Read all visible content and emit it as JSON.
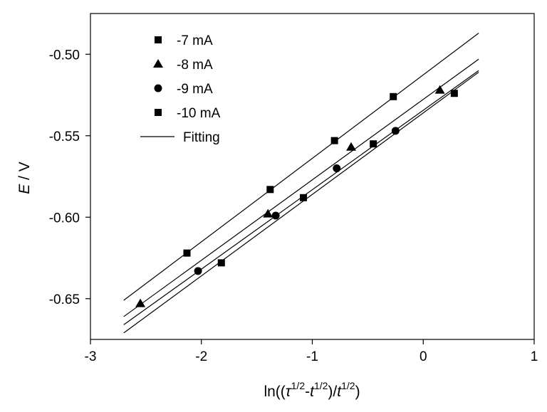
{
  "chart_data": {
    "type": "scatter",
    "xlim": [
      -3,
      1
    ],
    "ylim": [
      -0.675,
      -0.475
    ],
    "xticks": [
      -3,
      -2,
      -1,
      0,
      1
    ],
    "xtick_labels": [
      "-3",
      "-2",
      "-1",
      "0",
      "1"
    ],
    "yticks": [
      -0.65,
      -0.6,
      -0.55,
      -0.5
    ],
    "ytick_labels": [
      "-0.65",
      "-0.60",
      "-0.55",
      "-0.50"
    ],
    "ylabel_italic": "E",
    "ylabel_rest": " / V",
    "xlabel_parts": {
      "prefix": "ln((",
      "tau": "τ",
      "exp1": "1/2",
      "dash": "-",
      "t1": "t",
      "exp2": "1/2",
      "mid": ")/",
      "t2": "t",
      "exp3": "1/2",
      "suffix": ")"
    },
    "grid": false,
    "legend_position": "top-left",
    "series": [
      {
        "name": "-7 mA",
        "marker": "square",
        "x": [
          -2.13,
          -1.38,
          -0.8,
          -0.27
        ],
        "y": [
          -0.622,
          -0.583,
          -0.553,
          -0.526
        ],
        "fit": [
          [
            -2.7,
            -0.651
          ],
          [
            0.5,
            -0.487
          ]
        ]
      },
      {
        "name": "-8 mA",
        "marker": "triangle",
        "x": [
          -2.55,
          -1.4,
          -0.65,
          0.15
        ],
        "y": [
          -0.653,
          -0.598,
          -0.557,
          -0.522
        ],
        "fit": [
          [
            -2.7,
            -0.661
          ],
          [
            0.5,
            -0.503
          ]
        ]
      },
      {
        "name": "-9 mA",
        "marker": "circle",
        "x": [
          -2.03,
          -1.33,
          -0.78,
          -0.25
        ],
        "y": [
          -0.633,
          -0.599,
          -0.57,
          -0.547
        ],
        "fit": [
          [
            -2.7,
            -0.666
          ],
          [
            0.5,
            -0.51
          ]
        ]
      },
      {
        "name": "-10 mA",
        "marker": "square",
        "x": [
          -1.82,
          -1.08,
          -0.45,
          0.28
        ],
        "y": [
          -0.628,
          -0.588,
          -0.555,
          -0.524
        ],
        "fit": [
          [
            -2.7,
            -0.671
          ],
          [
            0.5,
            -0.511
          ]
        ]
      }
    ],
    "fit_label": "Fitting"
  }
}
